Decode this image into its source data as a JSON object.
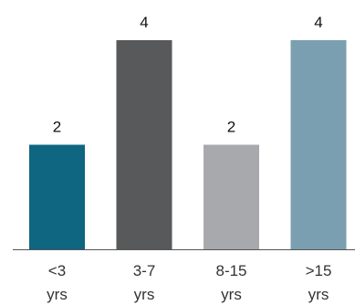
{
  "chart_data": {
    "type": "bar",
    "categories": [
      [
        "<3",
        "yrs"
      ],
      [
        "3-7",
        "yrs"
      ],
      [
        "8-15",
        "yrs"
      ],
      [
        ">15",
        "yrs"
      ]
    ],
    "values": [
      2,
      4,
      2,
      4
    ],
    "colors": [
      "#0e6680",
      "#58595b",
      "#a7a9ac",
      "#7a9fb0"
    ],
    "title": "",
    "xlabel": "",
    "ylabel": "",
    "ylim": [
      0,
      4
    ],
    "grid": false,
    "legend": "none"
  }
}
